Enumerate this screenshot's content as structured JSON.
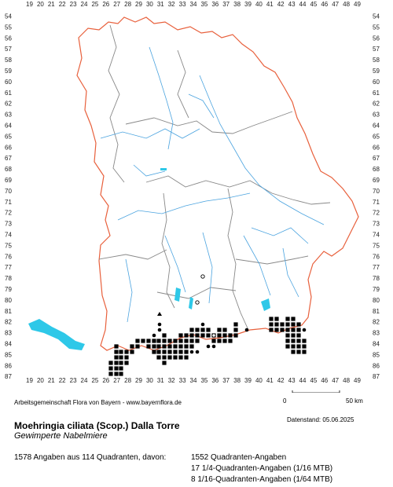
{
  "map": {
    "x_axis_labels": [
      19,
      20,
      21,
      22,
      23,
      24,
      25,
      26,
      27,
      28,
      29,
      30,
      31,
      32,
      33,
      34,
      35,
      36,
      37,
      38,
      39,
      40,
      41,
      42,
      43,
      44,
      45,
      46,
      47,
      48,
      49
    ],
    "y_axis_labels": [
      54,
      55,
      56,
      57,
      58,
      59,
      60,
      61,
      62,
      63,
      64,
      65,
      66,
      67,
      68,
      69,
      70,
      71,
      72,
      73,
      74,
      75,
      76,
      77,
      78,
      79,
      80,
      81,
      82,
      83,
      84,
      85,
      86,
      87
    ],
    "colors": {
      "state_border": "#e8603c",
      "district_border": "#888888",
      "rivers": "#4aa3df",
      "lakes": "#2ec8e8",
      "markers": "#000000"
    },
    "marker_legend_meaning": {
      "filled_square": "quadrant record",
      "filled_circle": "1/16 quadrant record",
      "open_circle": "1/64 quadrant record"
    }
  },
  "scale": {
    "zero": "0",
    "max": "50 km"
  },
  "footer": {
    "credit": "Arbeitsgemeinschaft Flora von Bayern - www.bayernflora.de",
    "date": "Datenstand: 05.06.2025"
  },
  "species": {
    "scientific": "Moehringia ciliata (Scop.) Dalla Torre",
    "common": "Gewimperte Nabelmiere"
  },
  "stats": {
    "summary": "1578 Angaben aus 114 Quadranten, davon:",
    "breakdown": [
      "1552 Quadranten-Angaben",
      "17 1/4-Quadranten-Angaben (1/16 MTB)",
      "8 1/16-Quadranten-Angaben (1/64 MTB)"
    ]
  }
}
